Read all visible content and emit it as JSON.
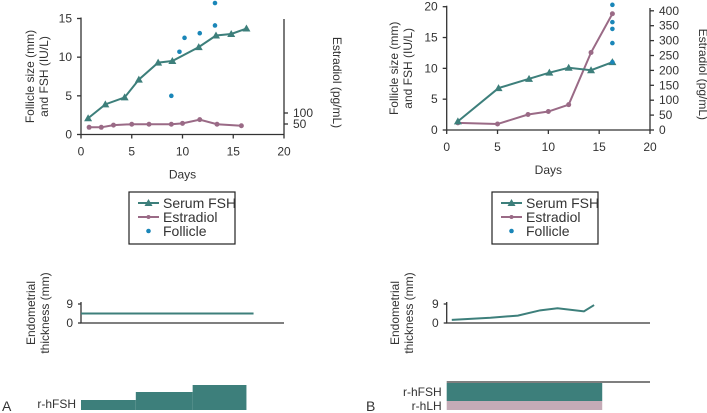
{
  "colors": {
    "fsh": "#3d7f7b",
    "estradiol": "#9a6a86",
    "follicle": "#1a86b8",
    "lh_bar": "#c5abb7"
  },
  "legend": {
    "fsh": "Serum FSH",
    "estradiol": "Estradiol",
    "follicle": "Follicle"
  },
  "chart_data": [
    {
      "panel": "A",
      "type": "line",
      "xlabel": "Days",
      "ylabel": "Follicle size (mm) and FSH (IU/L)",
      "y2label": "Estradiol (pg/mL)",
      "xlim": [
        0,
        20
      ],
      "ylim": [
        0,
        15
      ],
      "xticks": [
        "0",
        "5",
        "10",
        "15",
        "20"
      ],
      "yticks": [
        "0",
        "5",
        "10",
        "15"
      ],
      "y2ticks": [
        "50",
        "100"
      ],
      "legend_position": "below",
      "series": [
        {
          "name": "Serum FSH",
          "axis": "left",
          "x": [
            0.7,
            2.4,
            4.3,
            5.7,
            7.6,
            9.0,
            11.6,
            13.3,
            14.8,
            16.3
          ],
          "y": [
            2.1,
            3.9,
            4.8,
            7.1,
            9.3,
            9.5,
            11.3,
            12.8,
            13.0,
            13.7
          ]
        },
        {
          "name": "Estradiol",
          "axis": "right",
          "x": [
            0.8,
            2.0,
            3.2,
            5.0,
            6.7,
            8.9,
            10.0,
            11.7,
            13.4,
            15.8
          ],
          "y": [
            35,
            35,
            45,
            49,
            49,
            49,
            53,
            70,
            49,
            42
          ]
        },
        {
          "name": "Follicle",
          "axis": "left",
          "x": [
            8.9,
            9.7,
            10.2,
            11.7,
            13.2,
            13.2
          ],
          "y": [
            5.0,
            10.7,
            12.5,
            13.1,
            14.1,
            17.0
          ]
        }
      ],
      "endometrium": {
        "ylabel": "Endometrial thickness (mm)",
        "yticks": [
          "0",
          "9"
        ],
        "x": [
          0,
          17.0
        ],
        "y": [
          4.5,
          4.5
        ]
      },
      "treatment": {
        "label": "r-hFSH",
        "steps": [
          {
            "from": 0,
            "to": 5.4,
            "level": 1
          },
          {
            "from": 5.4,
            "to": 11.0,
            "level": 2
          },
          {
            "from": 11.0,
            "to": 16.3,
            "level": 3
          }
        ]
      }
    },
    {
      "panel": "B",
      "type": "line",
      "xlabel": "Days",
      "ylabel": "Follicle size (mm) and FSH (IU/L)",
      "y2label": "Estradiol (pg/mL)",
      "xlim": [
        0,
        20
      ],
      "ylim": [
        0,
        20
      ],
      "y2lim": [
        0,
        400
      ],
      "xticks": [
        "0",
        "5",
        "10",
        "15",
        "20"
      ],
      "yticks": [
        "0",
        "5",
        "10",
        "15",
        "20"
      ],
      "y2ticks": [
        "0",
        "50",
        "100",
        "150",
        "200",
        "250",
        "300",
        "350",
        "400"
      ],
      "legend_position": "below",
      "series": [
        {
          "name": "Serum FSH",
          "axis": "left",
          "x": [
            1.1,
            5.1,
            8.1,
            10.1,
            12.0,
            14.2,
            16.3
          ],
          "y": [
            1.4,
            6.8,
            8.3,
            9.3,
            10.1,
            9.7,
            11.0
          ]
        },
        {
          "name": "Estradiol",
          "axis": "right",
          "x": [
            1.1,
            5.0,
            8.0,
            10.0,
            12.0,
            14.2,
            16.3
          ],
          "y": [
            24,
            20,
            52,
            62,
            85,
            260,
            390
          ]
        },
        {
          "name": "Follicle",
          "axis": "left",
          "x": [
            16.3,
            16.3,
            16.3,
            16.3,
            16.3
          ],
          "y": [
            20.3,
            17.5,
            16.4,
            14.1,
            11.0
          ]
        }
      ],
      "endometrium": {
        "ylabel": "Endometrial thickness (mm)",
        "yticks": [
          "0",
          "9"
        ],
        "x": [
          0.5,
          4.3,
          7.0,
          9.2,
          10.9,
          13.5,
          14.5
        ],
        "y": [
          1.5,
          2.5,
          3.5,
          6.0,
          7.0,
          5.5,
          8.5
        ]
      },
      "treatment": {
        "labels": [
          "r-hFSH",
          "r-hLH"
        ],
        "from": 0,
        "to": 15.3
      }
    }
  ]
}
